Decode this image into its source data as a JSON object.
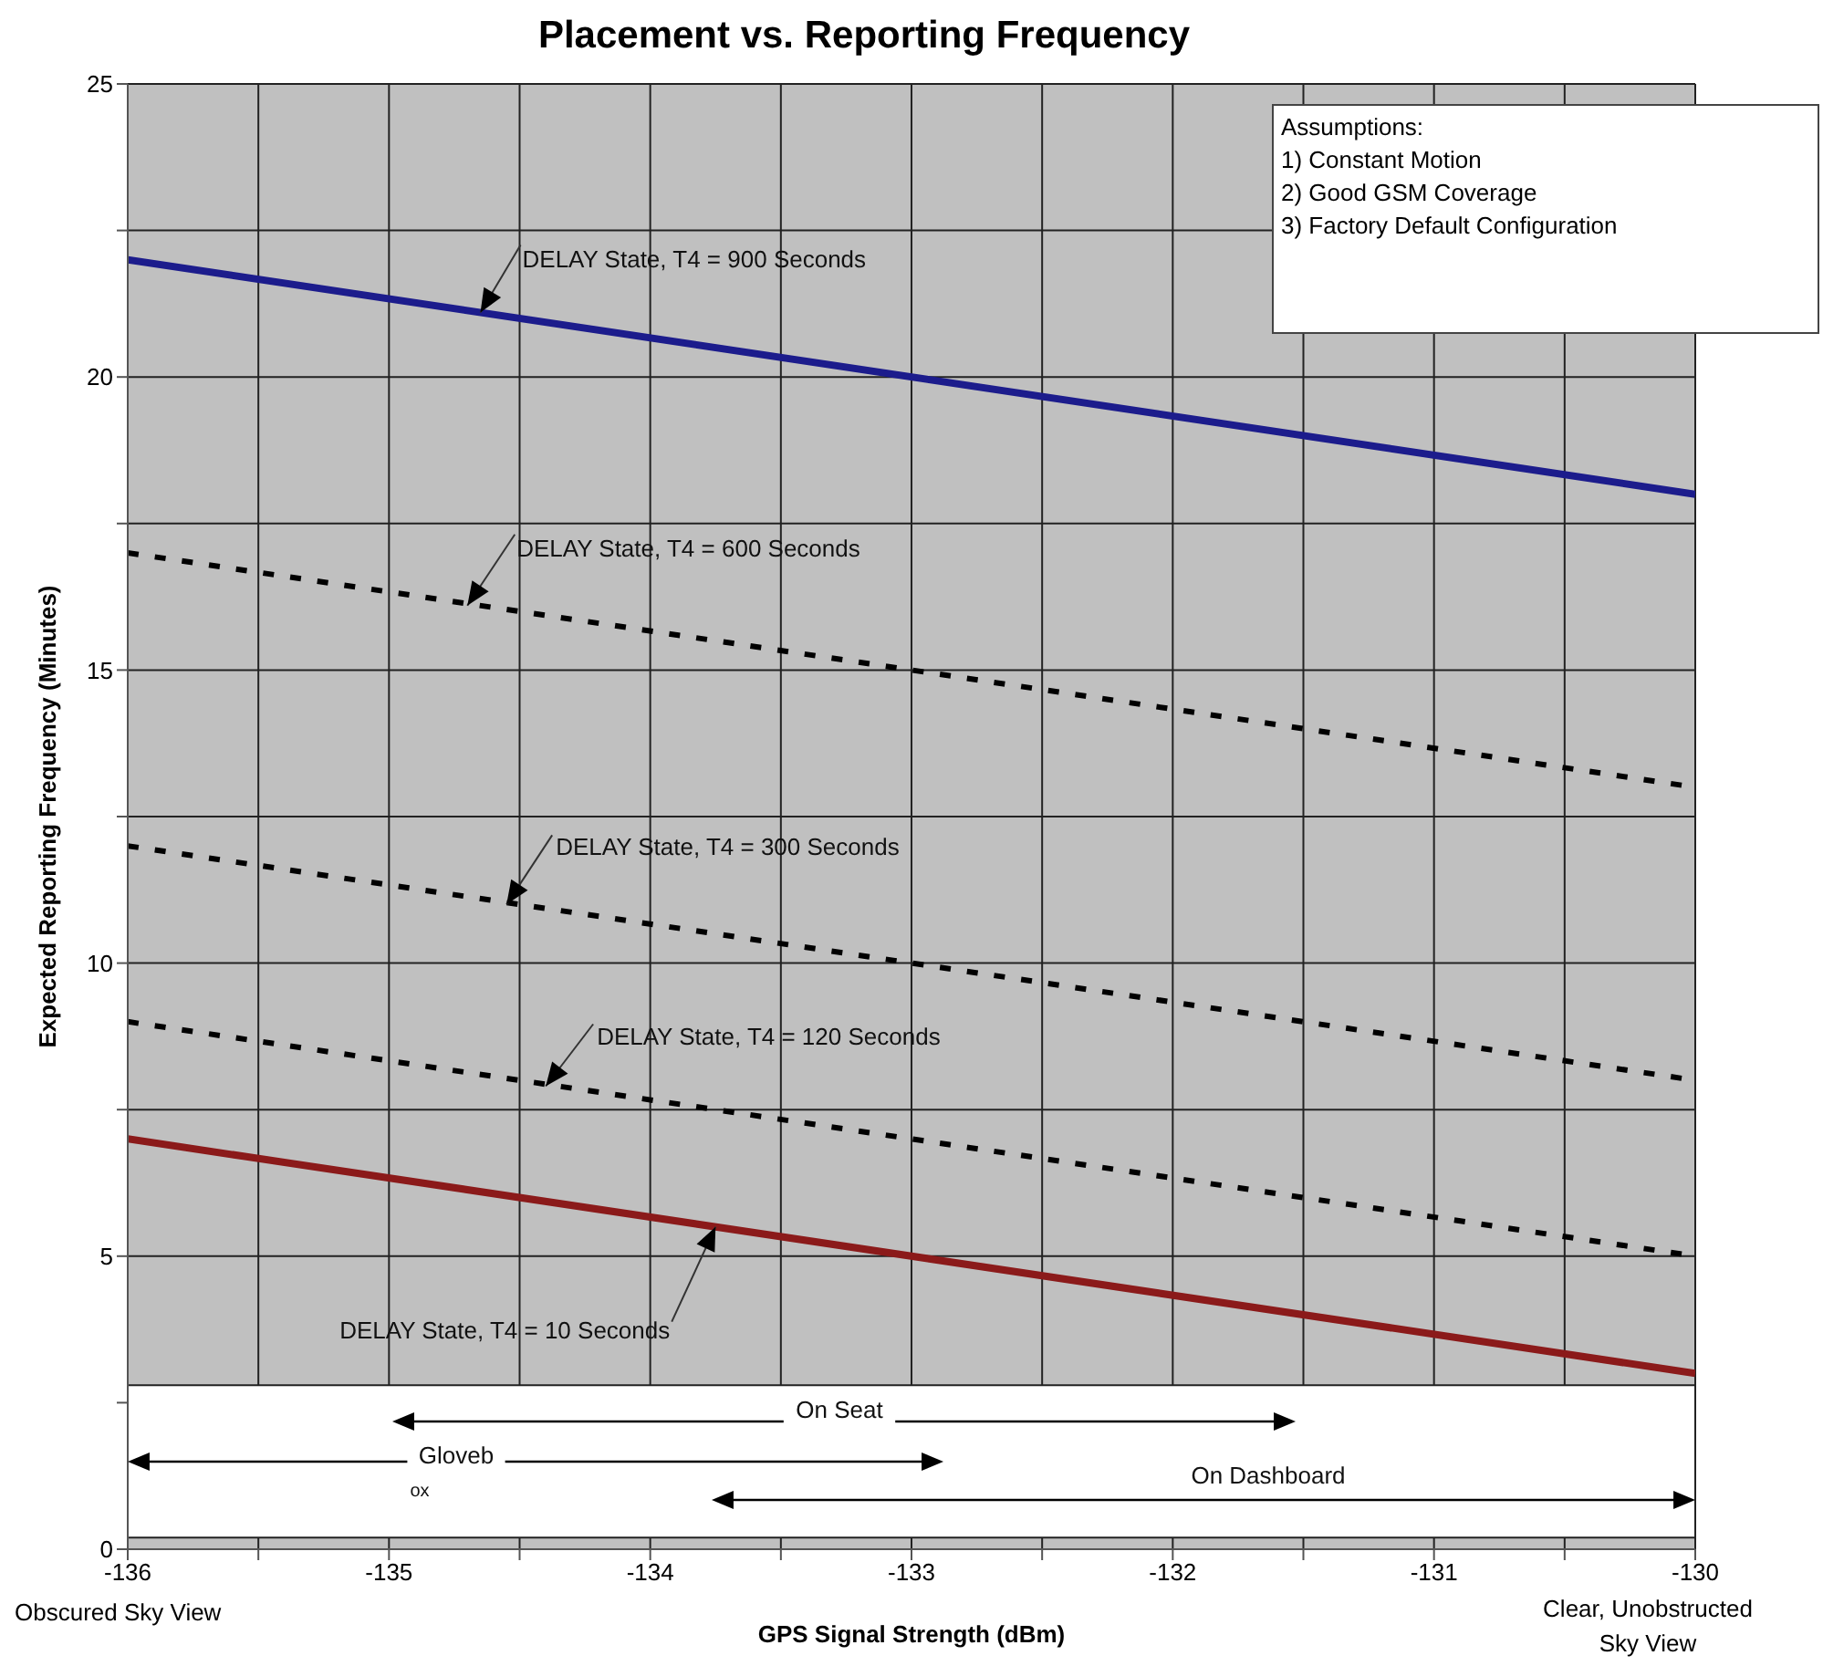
{
  "chart_data": {
    "type": "line",
    "title": "Placement vs. Reporting Frequency",
    "xlabel": "GPS Signal Strength (dBm)",
    "ylabel": "Expected Reporting Frequency (Minutes)",
    "x": [
      -136,
      -130
    ],
    "series": [
      {
        "color": "#1c1c8c",
        "values": [
          22,
          18
        ],
        "line_style": "solid"
      },
      {
        "color": "#000000",
        "values": [
          17,
          13
        ],
        "line_style": "dashed"
      },
      {
        "color": "#000000",
        "values": [
          12,
          8
        ],
        "line_style": "dashed"
      },
      {
        "color": "#000000",
        "values": [
          9,
          5
        ],
        "line_style": "dashed"
      },
      {
        "color": "#8b1a1a",
        "values": [
          7,
          3
        ],
        "line_style": "solid"
      }
    ],
    "xlim": [
      -136,
      -130
    ],
    "xticks": [
      -136,
      {
        "value": -135.5,
        "label": null
      },
      -135,
      {
        "value": -134.5,
        "label": null
      },
      -134,
      {
        "value": -133.5,
        "label": null
      },
      -133,
      {
        "value": -132.5,
        "label": null
      },
      -132,
      {
        "value": -131.5,
        "label": null
      },
      -131,
      {
        "value": -130.5,
        "label": null
      },
      -130
    ],
    "ylim": [
      0,
      25
    ],
    "yticks": [
      0,
      {
        "value": 2.5,
        "label": null
      },
      5,
      {
        "value": 7.5,
        "label": null
      },
      10,
      {
        "value": 12.5,
        "label": null
      },
      15,
      {
        "value": 17.5,
        "label": null
      },
      20,
      {
        "value": 22.5,
        "label": null
      },
      25
    ],
    "bands": [
      {
        "axis": "y",
        "from": 0.2,
        "to": 2.8,
        "color": "#ffffff"
      }
    ],
    "grid": true,
    "legend": false,
    "annotations": [
      {
        "text": "DELAY State, T4 = 900 Seconds",
        "x": -134.65,
        "y": 21.1
      },
      {
        "text": "DELAY State, T4 = 600 Seconds",
        "x": -134.7,
        "y": 16.1
      },
      {
        "text": "DELAY State, T4 = 300 Seconds",
        "x": -134.55,
        "y": 11.0
      },
      {
        "text": "DELAY State, T4 = 120 Seconds",
        "x": -134.4,
        "y": 7.9
      },
      {
        "text": "DELAY State, T4 = 10 Seconds",
        "x": -133.75,
        "y": 5.5
      },
      "On Seat",
      "Gloveb",
      "ox",
      "On Dashboard",
      "Assumptions:",
      "1)  Constant Motion",
      "2)  Good GSM Coverage",
      "3)  Factory Default Configuration",
      "Obscured Sky View",
      "Clear, Unobstructed Sky View"
    ]
  }
}
